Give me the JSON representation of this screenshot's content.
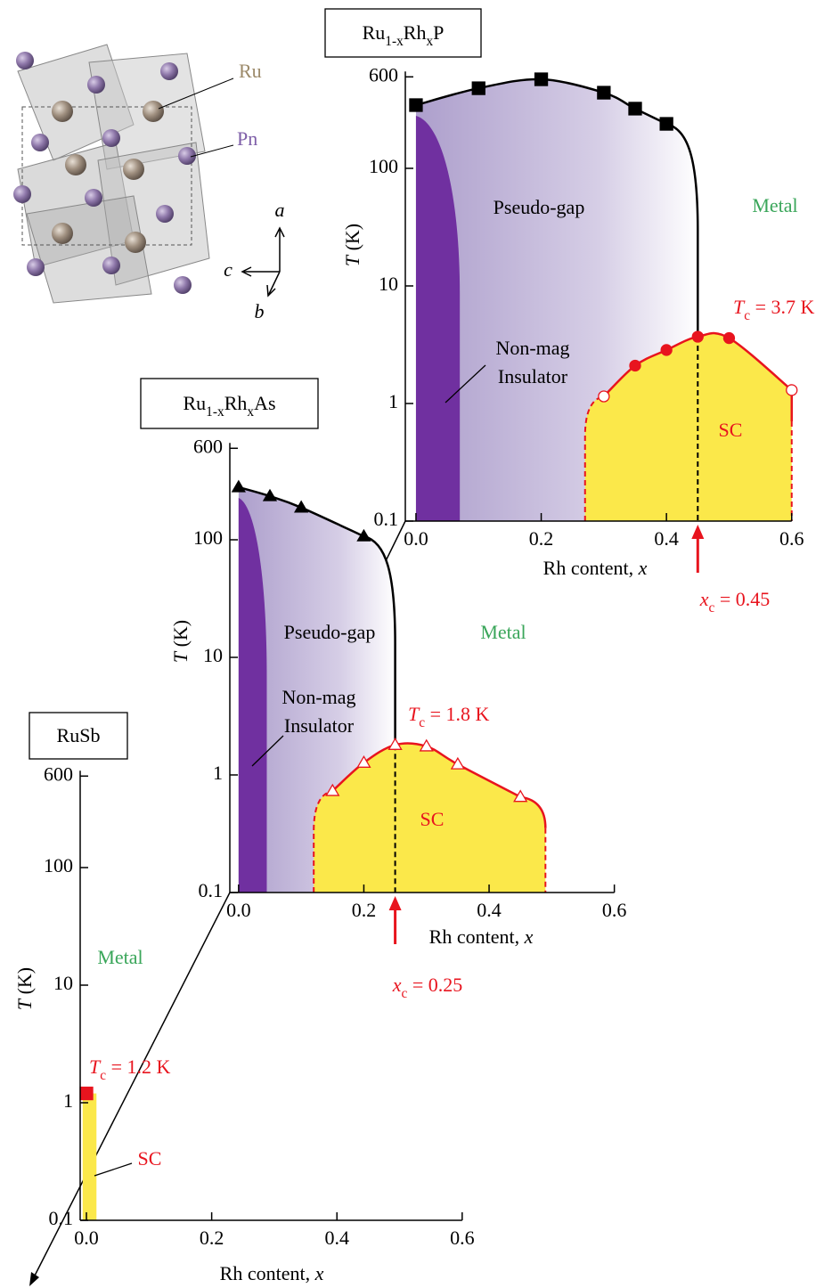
{
  "structure": {
    "atoms": [
      "Ru",
      "Pn"
    ],
    "axes": [
      "a",
      "c",
      "b"
    ]
  },
  "chart_data": [
    {
      "type": "phase",
      "title": [
        "Ru",
        "1-x",
        "Rh",
        "x",
        "P"
      ],
      "xlim": [
        -0.017,
        0.6
      ],
      "xticks": [
        {
          "value": 0,
          "label": "0.0"
        },
        0.2,
        0.4,
        0.6
      ],
      "ylim": [
        0.1,
        600
      ],
      "yticks": [
        0.1,
        1,
        10,
        100,
        600
      ],
      "log_y": true,
      "xlabel": [
        "Rh content,  ",
        "x"
      ],
      "ylabel": [
        "T",
        " (K)"
      ],
      "series": [
        {
          "marker": "square",
          "color": "#000000",
          "fills": [
            "#000000",
            "#000000",
            "#000000",
            "#000000",
            "#000000",
            "#000000"
          ],
          "x": [
            0,
            0.1,
            0.2,
            0.3,
            0.35,
            0.4
          ],
          "values": [
            345,
            480,
            572,
            440,
            322,
            239
          ]
        },
        {
          "marker": "circle",
          "color": "#e8141e",
          "fills": [
            "#ffffff",
            "#e8141e",
            "#e8141e",
            "#e8141e",
            "#e8141e",
            "#ffffff"
          ],
          "x": [
            0.3,
            0.35,
            0.4,
            0.45,
            0.5,
            0.6
          ],
          "values": [
            1.15,
            2.1,
            2.85,
            3.7,
            3.6,
            1.3
          ]
        }
      ],
      "xc": {
        "value": 0.45,
        "label": [
          "x",
          "c",
          " = 0.45"
        ]
      },
      "tc": {
        "value": 3.7,
        "label": [
          "T",
          "c",
          " = 3.7 K"
        ]
      },
      "regions": {
        "pseudo_gap": "Pseudo-gap",
        "metal": "Metal",
        "sc": "SC",
        "insulator": [
          "Non-mag",
          "Insulator"
        ]
      },
      "insulator_x": 0.07,
      "sc_edges": [
        0.27,
        0.6
      ]
    },
    {
      "type": "phase",
      "title": [
        "Ru",
        "1-x",
        "Rh",
        "x",
        "As"
      ],
      "xlim": [
        -0.014,
        0.6
      ],
      "xticks": [
        {
          "value": 0,
          "label": "0.0"
        },
        0.2,
        0.4,
        0.6
      ],
      "ylim": [
        0.1,
        600
      ],
      "yticks": [
        0.1,
        1,
        10,
        100,
        600
      ],
      "log_y": true,
      "xlabel": [
        "Rh content,  ",
        "x"
      ],
      "ylabel": [
        "T",
        " (K)"
      ],
      "series": [
        {
          "marker": "triangle",
          "color": "#000000",
          "fills": [
            "#000000",
            "#000000",
            "#000000",
            "#000000"
          ],
          "x": [
            0,
            0.05,
            0.1,
            0.2
          ],
          "values": [
            280,
            235,
            188,
            107
          ]
        },
        {
          "marker": "triangle",
          "color": "#e8141e",
          "fills": [
            "#ffffff",
            "#ffffff",
            "#ffffff",
            "#ffffff",
            "#ffffff",
            "#ffffff"
          ],
          "x": [
            0.15,
            0.2,
            0.25,
            0.3,
            0.35,
            0.45
          ],
          "values": [
            0.73,
            1.27,
            1.8,
            1.75,
            1.23,
            0.65
          ]
        }
      ],
      "xc": {
        "value": 0.25,
        "label": [
          "x",
          "c",
          " = 0.25"
        ]
      },
      "tc": {
        "value": 1.8,
        "label": [
          "T",
          "c",
          " = 1.8 K"
        ]
      },
      "regions": {
        "pseudo_gap": "Pseudo-gap",
        "metal": "Metal",
        "sc": "SC",
        "insulator": [
          "Non-mag",
          "Insulator"
        ]
      },
      "insulator_x": 0.045,
      "sc_edges": [
        0.12,
        0.49
      ]
    },
    {
      "type": "sc-only",
      "title": [
        "RuSb"
      ],
      "xlim": [
        -0.01,
        0.6
      ],
      "xticks": [
        {
          "value": 0,
          "label": "0.0"
        },
        0.2,
        0.4,
        0.6
      ],
      "ylim": [
        0.1,
        600
      ],
      "yticks": [
        0.1,
        1,
        10,
        100,
        600
      ],
      "log_y": true,
      "xlabel": [
        "Rh content,  ",
        "x"
      ],
      "ylabel": [
        "T",
        " (K)"
      ],
      "series": [
        {
          "marker": "square",
          "color": "#e8141e",
          "fills": [
            "#e8141e"
          ],
          "x": [
            0
          ],
          "values": [
            1.2
          ]
        }
      ],
      "tc": {
        "value": 1.2,
        "label": [
          "T",
          "c",
          " = 1.2 K"
        ]
      },
      "regions": {
        "metal": "Metal",
        "sc": "SC"
      },
      "sc_edges": [
        -0.006,
        0.016
      ]
    }
  ]
}
